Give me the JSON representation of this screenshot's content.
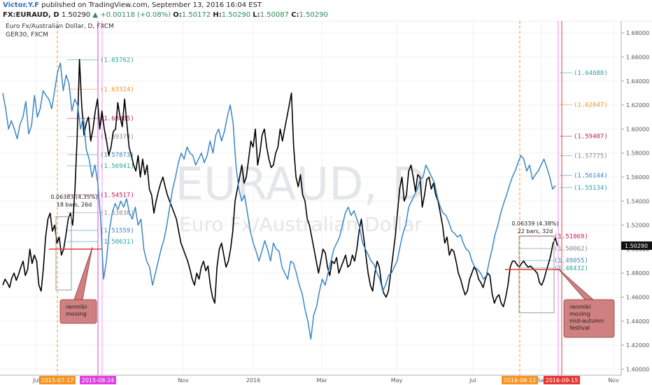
{
  "header": {
    "author": "Victor.Y.F",
    "published_text": "published on TradingView.com, September 13, 2016 16:04 EST",
    "symbol": "FX:EURAUD, D",
    "price": "1.50290",
    "change_arrow": "▲",
    "change": "+0.00118 (+0.08%)",
    "o_label": "O:",
    "o_val": "1.50172",
    "h_label": "H:",
    "h_val": "1.50290",
    "l_label": "L:",
    "l_val": "1.50087",
    "c_label": "C:",
    "c_val": "1.50290"
  },
  "legend": {
    "line1": "Euro Fx/Australian Dollar, D, FXCM",
    "line2": "GER30, FXCM"
  },
  "watermark": {
    "big": "EURAUD, D",
    "small": "Euro Fx/Australian Dollar"
  },
  "chart_data": {
    "type": "line",
    "ylim": [
      1.395,
      1.69
    ],
    "y_ticks": [
      1.68,
      1.66,
      1.64,
      1.62,
      1.6,
      1.58,
      1.56,
      1.54,
      1.52,
      1.5,
      1.48,
      1.46,
      1.44,
      1.42,
      1.4
    ],
    "y_tick_labels": [
      "1.68000",
      "1.66000",
      "1.64000",
      "1.62000",
      "1.60000",
      "1.58000",
      "1.56000",
      "1.54000",
      "1.52000",
      "1.50000",
      "1.48000",
      "1.46000",
      "1.44000",
      "1.42000",
      "1.40000"
    ],
    "x_ticks": [
      {
        "label": "Jul",
        "x": 0.0
      },
      {
        "label": "Nov",
        "x": 0.273
      },
      {
        "label": "2016",
        "x": 0.408
      },
      {
        "label": "Mar",
        "x": 0.528
      },
      {
        "label": "May",
        "x": 0.652
      },
      {
        "label": "Jul",
        "x": 0.786
      },
      {
        "label": "Se",
        "x": 0.876
      },
      {
        "label": "Nov",
        "x": 1.0
      }
    ],
    "date_markers": [
      {
        "label": "2015-07-17",
        "color": "#f7931e"
      },
      {
        "label": "2015-08-24",
        "color": "#e040e0"
      },
      {
        "label": "2016-08-12",
        "color": "#f7931e"
      },
      {
        "label": "2016-09-15",
        "color": "#e53935"
      }
    ],
    "last_price": {
      "value": 1.5029,
      "label": "1.50290"
    },
    "series": [
      {
        "name": "",
        "color": "#000000",
        "values": [
          1.47,
          1.475,
          1.472,
          1.468,
          1.476,
          1.48,
          1.474,
          1.479,
          1.485,
          1.49,
          1.478,
          1.483,
          1.5,
          1.488,
          1.495,
          1.49,
          1.47,
          1.465,
          1.484,
          1.51,
          1.525,
          1.53,
          1.515,
          1.52,
          1.505,
          1.51,
          1.495,
          1.5,
          1.512,
          1.525,
          1.53,
          1.52,
          1.55,
          1.595,
          1.658,
          1.62,
          1.595,
          1.605,
          1.61,
          1.59,
          1.6,
          1.615,
          1.625,
          1.6,
          1.615,
          1.6,
          1.59,
          1.578,
          1.585,
          1.598,
          1.6,
          1.622,
          1.61,
          1.602,
          1.625,
          1.605,
          1.585,
          1.578,
          1.57,
          1.565,
          1.578,
          1.56,
          1.575,
          1.562,
          1.57,
          1.55,
          1.545,
          1.53,
          1.54,
          1.548,
          1.555,
          1.56,
          1.552,
          1.545,
          1.54,
          1.535,
          1.53,
          1.525,
          1.515,
          1.505,
          1.5,
          1.495,
          1.49,
          1.483,
          1.475,
          1.47,
          1.48,
          1.475,
          1.485,
          1.49,
          1.482,
          1.486,
          1.47,
          1.46,
          1.455,
          1.485,
          1.5,
          1.505,
          1.495,
          1.485,
          1.49,
          1.5,
          1.515,
          1.54,
          1.55,
          1.56,
          1.57,
          1.555,
          1.56,
          1.575,
          1.59,
          1.585,
          1.6,
          1.57,
          1.58,
          1.595,
          1.6,
          1.585,
          1.575,
          1.568,
          1.57,
          1.58,
          1.585,
          1.6,
          1.59,
          1.6,
          1.61,
          1.62,
          1.63,
          1.585,
          1.56,
          1.552,
          1.562,
          1.545,
          1.54,
          1.525,
          1.52,
          1.51,
          1.5,
          1.49,
          1.48,
          1.49,
          1.5,
          1.497,
          1.485,
          1.478,
          1.49,
          1.488,
          1.493,
          1.48,
          1.485,
          1.49,
          1.495,
          1.485,
          1.487,
          1.495,
          1.49,
          1.5,
          1.515,
          1.525,
          1.51,
          1.495,
          1.48,
          1.47,
          1.465,
          1.48,
          1.49,
          1.485,
          1.47,
          1.463,
          1.46,
          1.465,
          1.48,
          1.495,
          1.51,
          1.53,
          1.55,
          1.56,
          1.54,
          1.545,
          1.565,
          1.57,
          1.56,
          1.548,
          1.562,
          1.56,
          1.535,
          1.545,
          1.558,
          1.56,
          1.55,
          1.555,
          1.545,
          1.54,
          1.53,
          1.52,
          1.505,
          1.51,
          1.495,
          1.5,
          1.498,
          1.49,
          1.48,
          1.475,
          1.468,
          1.462,
          1.465,
          1.475,
          1.48,
          1.485,
          1.482,
          1.475,
          1.472,
          1.468,
          1.475,
          1.48,
          1.478,
          1.463,
          1.455,
          1.46,
          1.462,
          1.455,
          1.452,
          1.46,
          1.47,
          1.485,
          1.49,
          1.49,
          1.487,
          1.485,
          1.488,
          1.49,
          1.487,
          1.485,
          1.486,
          1.484,
          1.482,
          1.48,
          1.472,
          1.47,
          1.475,
          1.482,
          1.488,
          1.495,
          1.505,
          1.509,
          1.5029
        ]
      },
      {
        "name": "",
        "color": "#3b86c6",
        "values": [
          1.63,
          1.617,
          1.6,
          1.607,
          1.6,
          1.592,
          1.604,
          1.61,
          1.623,
          1.596,
          1.603,
          1.628,
          1.61,
          1.617,
          1.632,
          1.628,
          1.625,
          1.617,
          1.632,
          1.647,
          1.655,
          1.632,
          1.645,
          1.638,
          1.615,
          1.625,
          1.62,
          1.6,
          1.61,
          1.583,
          1.575,
          1.56,
          1.57,
          1.555,
          1.525,
          1.475,
          1.49,
          1.515,
          1.53,
          1.538,
          1.533,
          1.54,
          1.535,
          1.542,
          1.53,
          1.525,
          1.535,
          1.52,
          1.525,
          1.5,
          1.49,
          1.485,
          1.47,
          1.48,
          1.49,
          1.5,
          1.508,
          1.52,
          1.535,
          1.55,
          1.56,
          1.572,
          1.58,
          1.575,
          1.585,
          1.58,
          1.578,
          1.57,
          1.575,
          1.58,
          1.572,
          1.578,
          1.59,
          1.58,
          1.595,
          1.6,
          1.59,
          1.598,
          1.61,
          1.62,
          1.605,
          1.57,
          1.55,
          1.54,
          1.545,
          1.53,
          1.515,
          1.505,
          1.498,
          1.49,
          1.498,
          1.507,
          1.5,
          1.49,
          1.505,
          1.5,
          1.498,
          1.485,
          1.48,
          1.475,
          1.49,
          1.488,
          1.48,
          1.47,
          1.463,
          1.45,
          1.44,
          1.425,
          1.445,
          1.452,
          1.465,
          1.475,
          1.47,
          1.48,
          1.49,
          1.5,
          1.505,
          1.51,
          1.52,
          1.53,
          1.535,
          1.528,
          1.532,
          1.525,
          1.518,
          1.505,
          1.5,
          1.495,
          1.49,
          1.487,
          1.48,
          1.475,
          1.465,
          1.47,
          1.478,
          1.48,
          1.485,
          1.49,
          1.502,
          1.513,
          1.52,
          1.535,
          1.54,
          1.545,
          1.55,
          1.558,
          1.56,
          1.57,
          1.565,
          1.56,
          1.555,
          1.543,
          1.535,
          1.53,
          1.528,
          1.522,
          1.515,
          1.513,
          1.51,
          1.512,
          1.505,
          1.5,
          1.498,
          1.49,
          1.485,
          1.483,
          1.48,
          1.475,
          1.478,
          1.49,
          1.5,
          1.512,
          1.52,
          1.53,
          1.538,
          1.545,
          1.553,
          1.56,
          1.565,
          1.572,
          1.578,
          1.575,
          1.565,
          1.57,
          1.558,
          1.562,
          1.565,
          1.57,
          1.575,
          1.568,
          1.56,
          1.55,
          1.553
        ]
      }
    ],
    "annotations": [
      {
        "text": "(1.65762)",
        "color": "#26a69a"
      },
      {
        "text": "(1.63324)",
        "color": "#f7931e"
      },
      {
        "text": "(1.60885)",
        "color": "#c2185b"
      },
      {
        "text": "(1.59379)",
        "color": "#888888"
      },
      {
        "text": "(1.57873)",
        "color": "#3b86c6"
      },
      {
        "text": "(1.56941)",
        "color": "#26a69a"
      },
      {
        "text": "(1.54517)",
        "color": "#c2185b"
      },
      {
        "text": "(1.53038)",
        "color": "#888888"
      },
      {
        "text": "(1.51559)",
        "color": "#3b86c6"
      },
      {
        "text": "(1.50631)",
        "color": "#26a69a"
      },
      {
        "text": "(1.64688)",
        "color": "#26a69a"
      },
      {
        "text": "(1.62047)",
        "color": "#f7931e"
      },
      {
        "text": "(1.59407)",
        "color": "#c2185b"
      },
      {
        "text": "(1.57775)",
        "color": "#888888"
      },
      {
        "text": "(1.56144)",
        "color": "#3b86c6"
      },
      {
        "text": "(1.55134)",
        "color": "#26a69a"
      },
      {
        "text": "(1.51069)",
        "color": "#c2185b"
      },
      {
        "text": "(1.50062)",
        "color": "#888888"
      },
      {
        "text": "(1.49055)",
        "color": "#3b86c6"
      },
      {
        "text": "(1.48432)",
        "color": "#26a69a"
      }
    ],
    "measures": [
      {
        "line1": "0.06383 (4.35%)",
        "line2": "18 bars, 26d"
      },
      {
        "line1": "0.06339 (4.38%)",
        "line2": "22 bars, 32d"
      }
    ],
    "callouts": [
      {
        "text": [
          "renmibi",
          "moving"
        ]
      },
      {
        "text": [
          "renmibi",
          "moving",
          "mid-autumn",
          "festival"
        ]
      }
    ]
  }
}
